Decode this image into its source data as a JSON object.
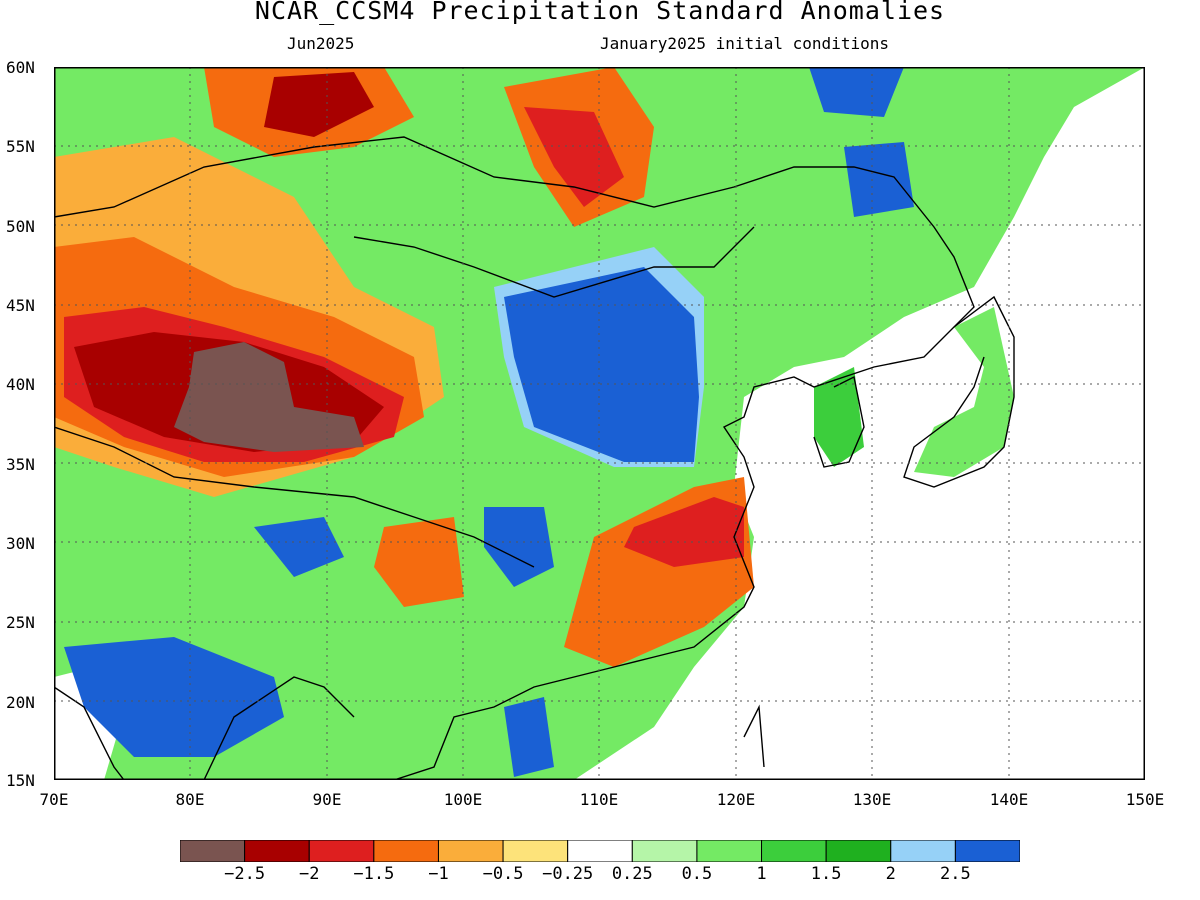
{
  "header": {
    "title": "NCAR_CCSM4 Precipitation Standard Anomalies",
    "month": "Jun2025",
    "init": "January2025 initial conditions"
  },
  "map": {
    "lat_labels": [
      "60N",
      "55N",
      "50N",
      "45N",
      "40N",
      "35N",
      "30N",
      "25N",
      "20N",
      "15N"
    ],
    "lon_labels": [
      "70E",
      "80E",
      "90E",
      "100E",
      "110E",
      "120E",
      "130E",
      "140E",
      "150E"
    ]
  },
  "legend": {
    "colors": [
      "#7a5450",
      "#a80000",
      "#de1f1f",
      "#f56b0f",
      "#faad3a",
      "#fde37a",
      "#ffffff",
      "#b5f5a8",
      "#74ea64",
      "#3cce3c",
      "#1fb01f",
      "#96d1f7",
      "#1a60d4"
    ],
    "labels": [
      "−2.5",
      "−2",
      "−1.5",
      "−1",
      "−0.5",
      "−0.25",
      "0.25",
      "0.5",
      "1",
      "1.5",
      "2",
      "2.5"
    ]
  }
}
